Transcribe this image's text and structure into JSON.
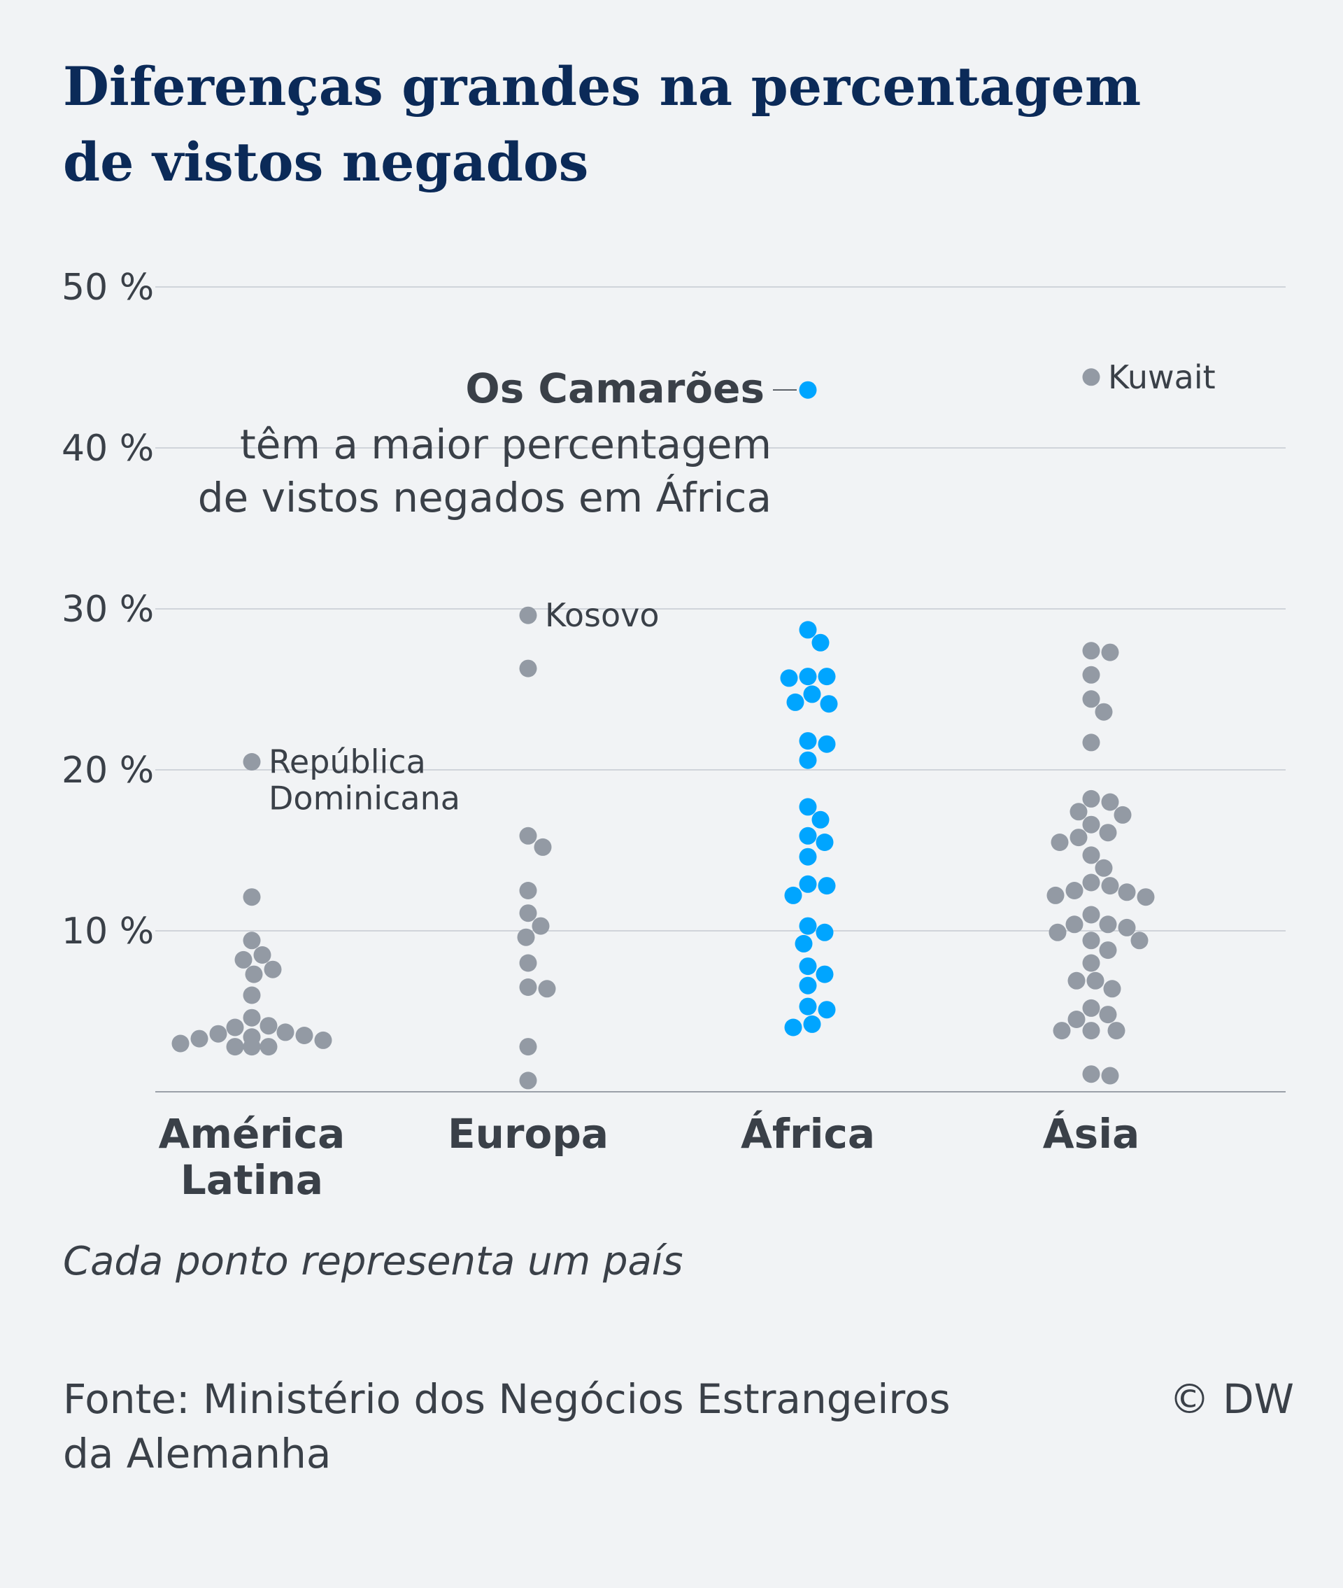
{
  "title": {
    "line1": "Diferenças grandes na percentagem",
    "line2": "de vistos negados"
  },
  "note": "Cada ponto representa um país",
  "source": {
    "line1": "Fonte: Ministério dos Negócios Estrangeiros",
    "line2": "da Alemanha"
  },
  "copyright": "© DW",
  "colors": {
    "background": "#f1f3f5",
    "title": "#0b2a58",
    "text": "#3a4048",
    "dot_default": "#939aa4",
    "dot_highlight": "#00a5ff",
    "grid": "#c5cad1"
  },
  "chart_data": {
    "type": "scatter",
    "subtype": "beeswarm",
    "ylim": [
      0,
      50
    ],
    "yticks": [
      {
        "value": 10,
        "label": "10 %"
      },
      {
        "value": 20,
        "label": "20 %"
      },
      {
        "value": 30,
        "label": "30 %"
      },
      {
        "value": 40,
        "label": "40 %"
      },
      {
        "value": 50,
        "label": "50 %"
      }
    ],
    "grid": true,
    "categories": [
      {
        "name_lines": [
          "América",
          "Latina"
        ]
      },
      {
        "name_lines": [
          "Europa"
        ]
      },
      {
        "name_lines": [
          "África"
        ]
      },
      {
        "name_lines": [
          "Ásia"
        ]
      }
    ],
    "series": [
      {
        "category": 0,
        "highlight": false,
        "values": [
          20.5,
          12.1,
          9.4,
          8.5,
          8.2,
          7.6,
          7.3,
          6.0,
          4.6,
          4.1,
          4.0,
          3.7,
          3.6,
          3.5,
          3.4,
          3.3,
          3.2,
          3.0,
          2.8,
          2.8,
          2.8
        ]
      },
      {
        "category": 1,
        "highlight": false,
        "values": [
          29.6,
          26.3,
          15.9,
          15.2,
          12.5,
          11.1,
          10.3,
          9.6,
          8.0,
          6.5,
          6.4,
          2.8,
          0.7
        ]
      },
      {
        "category": 2,
        "highlight": true,
        "values": [
          43.6,
          28.7,
          27.9,
          25.8,
          25.8,
          25.7,
          24.7,
          24.2,
          24.1,
          21.8,
          21.6,
          20.6,
          17.7,
          16.9,
          15.9,
          15.5,
          14.6,
          12.9,
          12.8,
          12.2,
          10.3,
          9.9,
          9.2,
          7.8,
          7.3,
          6.6,
          5.3,
          5.1,
          4.2,
          4.0
        ]
      },
      {
        "category": 3,
        "highlight": false,
        "values": [
          44.4,
          27.4,
          27.3,
          25.9,
          24.4,
          23.6,
          21.7,
          18.2,
          18.0,
          17.4,
          17.2,
          16.6,
          16.1,
          15.8,
          15.5,
          14.7,
          13.9,
          13.0,
          12.8,
          12.5,
          12.4,
          12.2,
          12.1,
          11.0,
          10.4,
          10.4,
          10.2,
          9.9,
          9.4,
          9.4,
          8.8,
          8.0,
          6.9,
          6.9,
          6.4,
          5.2,
          4.8,
          4.5,
          3.8,
          3.8,
          3.8,
          1.1,
          1.0
        ]
      }
    ],
    "labels": [
      {
        "category": 0,
        "value": 20.5,
        "lines": [
          "República",
          "Dominicana"
        ]
      },
      {
        "category": 1,
        "value": 29.6,
        "lines": [
          "Kosovo"
        ]
      },
      {
        "category": 3,
        "value": 44.4,
        "lines": [
          "Kuwait"
        ]
      }
    ],
    "annotation": {
      "category": 2,
      "value": 43.6,
      "bold": "Os Camarões",
      "lines": [
        "têm a maior percentagem",
        "de vistos negados em África"
      ]
    }
  }
}
